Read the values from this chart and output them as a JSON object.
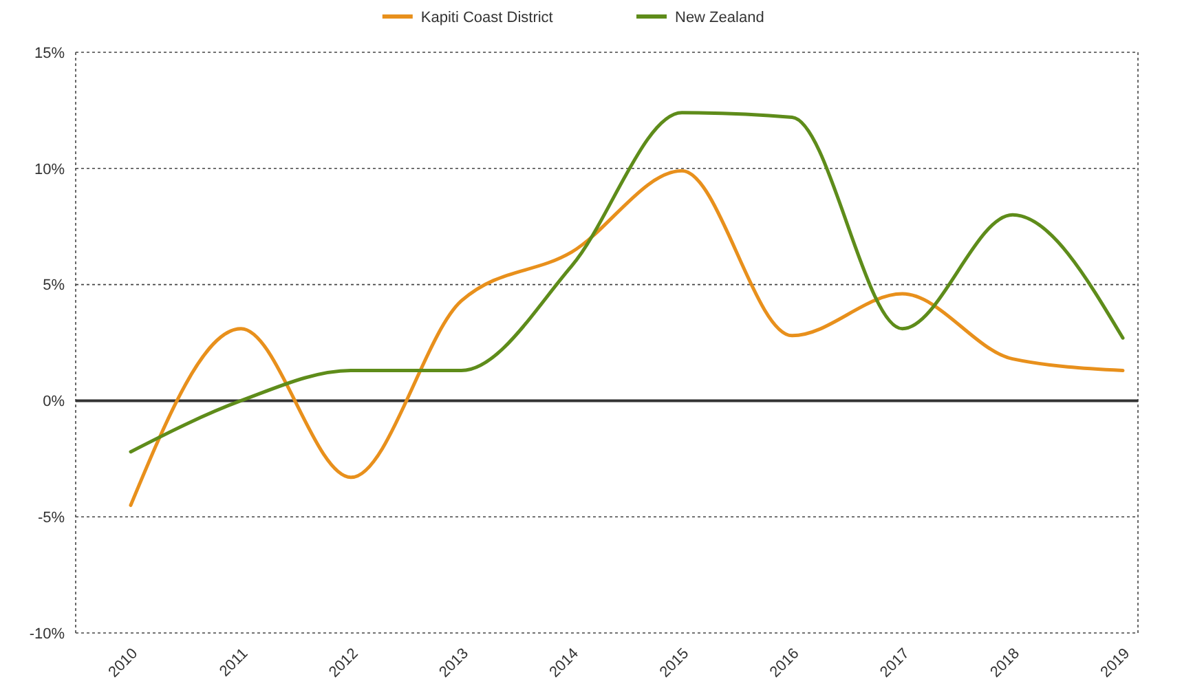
{
  "chart_data": {
    "type": "line",
    "categories": [
      "2010",
      "2011",
      "2012",
      "2013",
      "2014",
      "2015",
      "2016",
      "2017",
      "2018",
      "2019"
    ],
    "series": [
      {
        "name": "Kapiti Coast District",
        "color": "#e8901c",
        "values": [
          -4.5,
          3.1,
          -3.3,
          4.3,
          6.4,
          9.9,
          2.8,
          4.6,
          1.8,
          1.3
        ]
      },
      {
        "name": "New Zealand",
        "color": "#5e8c1a",
        "values": [
          -2.2,
          0,
          1.3,
          1.3,
          5.8,
          12.4,
          12.2,
          3.1,
          8.0,
          2.7
        ]
      }
    ],
    "ylim": [
      -10,
      15
    ],
    "yticks": [
      {
        "value": -10,
        "label": "-10%"
      },
      {
        "value": -5,
        "label": "-5%"
      },
      {
        "value": 0,
        "label": "0%"
      },
      {
        "value": 5,
        "label": "5%"
      },
      {
        "value": 10,
        "label": "10%"
      },
      {
        "value": 15,
        "label": "15%"
      }
    ],
    "grid": "y",
    "legend": "top",
    "marker": "none",
    "line_style": "solid",
    "ref_lines": [
      {
        "axis": "y",
        "value": 0,
        "color": "#333333"
      }
    ]
  }
}
